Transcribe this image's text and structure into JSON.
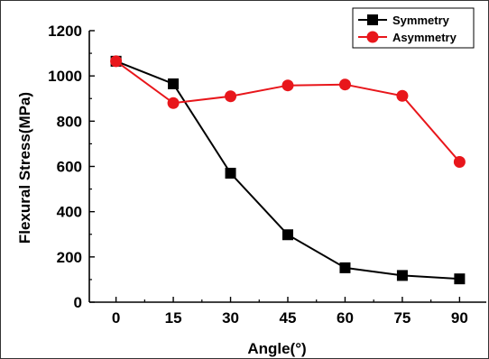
{
  "chart_data": {
    "type": "line",
    "title": "",
    "xlabel": "Angle(°)",
    "ylabel": "Flexural Stress(MPa)",
    "x": [
      0,
      15,
      30,
      45,
      60,
      75,
      90
    ],
    "x_ticks": [
      "0",
      "15",
      "30",
      "45",
      "60",
      "75",
      "90"
    ],
    "xlim": [
      -7,
      97
    ],
    "ylim": [
      0,
      1200
    ],
    "y_ticks": [
      "0",
      "200",
      "400",
      "600",
      "800",
      "1000",
      "1200"
    ],
    "grid": false,
    "legend_position": "top-right",
    "series": [
      {
        "name": "Symmetry",
        "color": "#000000",
        "marker": "square",
        "values": [
          1065,
          965,
          570,
          298,
          152,
          118,
          103
        ]
      },
      {
        "name": "Asymmetry",
        "color": "#e8161b",
        "marker": "circle",
        "values": [
          1065,
          880,
          910,
          958,
          962,
          912,
          620
        ]
      }
    ]
  }
}
